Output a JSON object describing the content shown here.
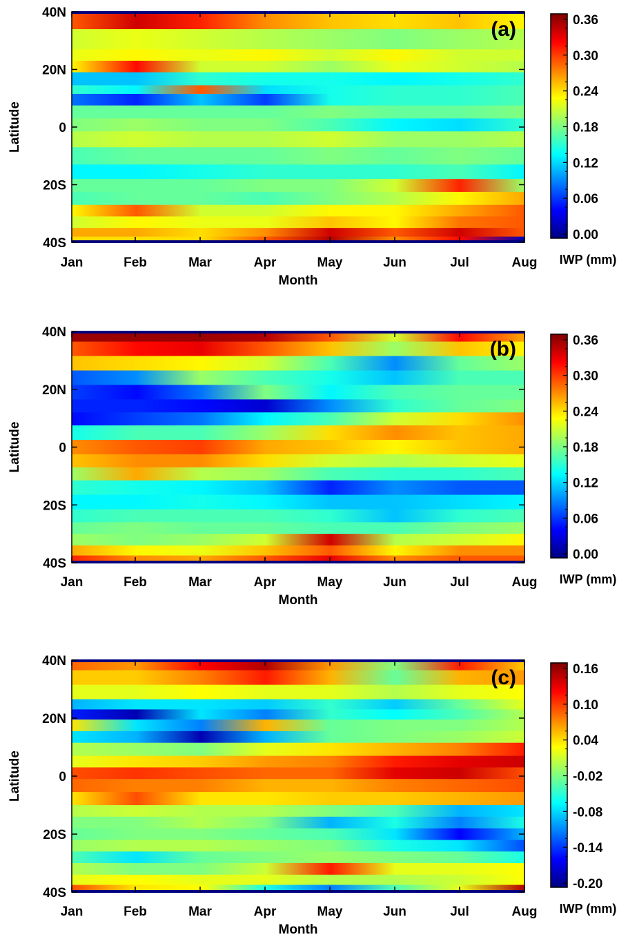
{
  "colors": {
    "colormap": [
      "#00007f",
      "#0000ff",
      "#0080ff",
      "#00ffff",
      "#80ff80",
      "#ffff00",
      "#ff8000",
      "#ff0000",
      "#7f0000"
    ]
  },
  "chart_data": [
    {
      "type": "heatmap",
      "panel_label": "(a)",
      "xlabel": "Month",
      "ylabel": "Latitude",
      "x_tick_labels": [
        "Jan",
        "Feb",
        "Mar",
        "Apr",
        "May",
        "Jun",
        "Jul",
        "Aug"
      ],
      "y_tick_labels": [
        "40N",
        "20N",
        "0",
        "20S",
        "40S"
      ],
      "y_tick_values": [
        40,
        20,
        0,
        -20,
        -40
      ],
      "ylim": [
        -40,
        40
      ],
      "colorbar": {
        "label": "IWP (mm)",
        "tick_labels": [
          "0.36",
          "0.30",
          "0.24",
          "0.18",
          "0.12",
          "0.06",
          "0.00"
        ],
        "range": [
          0.0,
          0.38
        ]
      },
      "bands": [
        {
          "lat": 38,
          "values": [
            0.3,
            0.35,
            0.32,
            0.28,
            0.26,
            0.25,
            0.26,
            0.24
          ]
        },
        {
          "lat": 30,
          "values": [
            0.22,
            0.23,
            0.22,
            0.21,
            0.2,
            0.19,
            0.2,
            0.21
          ]
        },
        {
          "lat": 24,
          "values": [
            0.23,
            0.24,
            0.23,
            0.24,
            0.22,
            0.24,
            0.22,
            0.22
          ]
        },
        {
          "lat": 22,
          "values": [
            0.24,
            0.33,
            0.22,
            0.22,
            0.2,
            0.23,
            0.22,
            0.21
          ]
        },
        {
          "lat": 16,
          "values": [
            0.12,
            0.12,
            0.16,
            0.15,
            0.15,
            0.14,
            0.15,
            0.16
          ]
        },
        {
          "lat": 13,
          "values": [
            0.16,
            0.14,
            0.3,
            0.13,
            0.15,
            0.16,
            0.16,
            0.17
          ]
        },
        {
          "lat": 10,
          "values": [
            0.09,
            0.06,
            0.12,
            0.07,
            0.15,
            0.16,
            0.16,
            0.17
          ]
        },
        {
          "lat": 5,
          "values": [
            0.18,
            0.18,
            0.18,
            0.18,
            0.19,
            0.18,
            0.18,
            0.19
          ]
        },
        {
          "lat": 1,
          "values": [
            0.19,
            0.2,
            0.19,
            0.19,
            0.17,
            0.14,
            0.13,
            0.16
          ]
        },
        {
          "lat": -4,
          "values": [
            0.21,
            0.22,
            0.21,
            0.21,
            0.22,
            0.2,
            0.2,
            0.21
          ]
        },
        {
          "lat": -10,
          "values": [
            0.17,
            0.18,
            0.18,
            0.18,
            0.19,
            0.18,
            0.19,
            0.18
          ]
        },
        {
          "lat": -16,
          "values": [
            0.14,
            0.14,
            0.15,
            0.16,
            0.16,
            0.16,
            0.17,
            0.14
          ]
        },
        {
          "lat": -20,
          "values": [
            0.18,
            0.18,
            0.18,
            0.19,
            0.19,
            0.22,
            0.32,
            0.2
          ]
        },
        {
          "lat": -25,
          "values": [
            0.17,
            0.18,
            0.18,
            0.17,
            0.19,
            0.21,
            0.24,
            0.27
          ]
        },
        {
          "lat": -29,
          "values": [
            0.24,
            0.3,
            0.22,
            0.22,
            0.24,
            0.24,
            0.27,
            0.3
          ]
        },
        {
          "lat": -33,
          "values": [
            0.22,
            0.24,
            0.23,
            0.23,
            0.26,
            0.24,
            0.29,
            0.3
          ]
        },
        {
          "lat": -37,
          "values": [
            0.27,
            0.27,
            0.25,
            0.28,
            0.35,
            0.3,
            0.35,
            0.3
          ]
        },
        {
          "lat": -39,
          "values": [
            0.25,
            0.25,
            0.25,
            0.3,
            0.36,
            0.28,
            0.33,
            0.02
          ]
        }
      ]
    },
    {
      "type": "heatmap",
      "panel_label": "(b)",
      "xlabel": "Month",
      "ylabel": "Latitude",
      "x_tick_labels": [
        "Jan",
        "Feb",
        "Mar",
        "Apr",
        "May",
        "Jun",
        "Jul",
        "Aug"
      ],
      "y_tick_labels": [
        "40N",
        "20N",
        "0",
        "20S",
        "40S"
      ],
      "y_tick_values": [
        40,
        20,
        0,
        -20,
        -40
      ],
      "ylim": [
        -40,
        40
      ],
      "colorbar": {
        "label": "IWP (mm)",
        "tick_labels": [
          "0.36",
          "0.30",
          "0.24",
          "0.18",
          "0.12",
          "0.06",
          "0.00"
        ],
        "range": [
          0.0,
          0.38
        ]
      },
      "bands": [
        {
          "lat": 39,
          "values": [
            0.37,
            0.37,
            0.37,
            0.36,
            0.3,
            0.22,
            0.33,
            0.27
          ]
        },
        {
          "lat": 34,
          "values": [
            0.3,
            0.33,
            0.34,
            0.3,
            0.26,
            0.2,
            0.26,
            0.24
          ]
        },
        {
          "lat": 29,
          "values": [
            0.26,
            0.25,
            0.24,
            0.22,
            0.17,
            0.1,
            0.18,
            0.2
          ]
        },
        {
          "lat": 24,
          "values": [
            0.08,
            0.1,
            0.2,
            0.17,
            0.15,
            0.12,
            0.17,
            0.17
          ]
        },
        {
          "lat": 19,
          "values": [
            0.07,
            0.05,
            0.09,
            0.19,
            0.14,
            0.17,
            0.18,
            0.18
          ]
        },
        {
          "lat": 14,
          "values": [
            0.06,
            0.06,
            0.05,
            0.03,
            0.1,
            0.16,
            0.18,
            0.19
          ]
        },
        {
          "lat": 10,
          "values": [
            0.05,
            0.07,
            0.09,
            0.14,
            0.17,
            0.22,
            0.25,
            0.28
          ]
        },
        {
          "lat": 5,
          "values": [
            0.15,
            0.17,
            0.17,
            0.2,
            0.25,
            0.28,
            0.26,
            0.27
          ]
        },
        {
          "lat": 0,
          "values": [
            0.28,
            0.3,
            0.31,
            0.27,
            0.26,
            0.24,
            0.26,
            0.27
          ]
        },
        {
          "lat": -5,
          "values": [
            0.26,
            0.28,
            0.28,
            0.25,
            0.22,
            0.21,
            0.22,
            0.23
          ]
        },
        {
          "lat": -9,
          "values": [
            0.2,
            0.27,
            0.21,
            0.2,
            0.17,
            0.16,
            0.16,
            0.17
          ]
        },
        {
          "lat": -14,
          "values": [
            0.16,
            0.15,
            0.14,
            0.12,
            0.06,
            0.1,
            0.08,
            0.08
          ]
        },
        {
          "lat": -19,
          "values": [
            0.14,
            0.14,
            0.15,
            0.14,
            0.12,
            0.12,
            0.13,
            0.14
          ]
        },
        {
          "lat": -24,
          "values": [
            0.16,
            0.17,
            0.17,
            0.17,
            0.16,
            0.12,
            0.16,
            0.17
          ]
        },
        {
          "lat": -28,
          "values": [
            0.18,
            0.19,
            0.18,
            0.18,
            0.17,
            0.17,
            0.19,
            0.2
          ]
        },
        {
          "lat": -32,
          "values": [
            0.2,
            0.19,
            0.2,
            0.22,
            0.35,
            0.21,
            0.22,
            0.24
          ]
        },
        {
          "lat": -36,
          "values": [
            0.27,
            0.24,
            0.23,
            0.26,
            0.3,
            0.24,
            0.28,
            0.28
          ]
        },
        {
          "lat": -39,
          "values": [
            0.32,
            0.28,
            0.27,
            0.3,
            0.34,
            0.28,
            0.3,
            0.3
          ]
        }
      ]
    },
    {
      "type": "heatmap",
      "panel_label": "(c)",
      "xlabel": "Month",
      "ylabel": "Latitude",
      "x_tick_labels": [
        "Jan",
        "Feb",
        "Mar",
        "Apr",
        "May",
        "Jun",
        "Jul",
        "Aug"
      ],
      "y_tick_labels": [
        "40N",
        "20N",
        "0",
        "20S",
        "40S"
      ],
      "y_tick_values": [
        40,
        20,
        0,
        -20,
        -40
      ],
      "ylim": [
        -40,
        40
      ],
      "colorbar": {
        "label": "IWP (mm)",
        "tick_labels": [
          "0.16",
          "0.10",
          "0.04",
          "-0.02",
          "-0.08",
          "-0.14",
          "-0.20"
        ],
        "range": [
          -0.22,
          0.18
        ]
      },
      "bands": [
        {
          "lat": 39,
          "values": [
            0.09,
            0.07,
            0.13,
            0.16,
            0.07,
            -0.02,
            0.12,
            0.05
          ]
        },
        {
          "lat": 34,
          "values": [
            0.05,
            0.05,
            0.08,
            0.12,
            0.06,
            -0.03,
            0.06,
            0.07
          ]
        },
        {
          "lat": 29,
          "values": [
            0.02,
            0.02,
            0.03,
            0.02,
            0.02,
            0.0,
            0.02,
            0.03
          ]
        },
        {
          "lat": 24,
          "values": [
            -0.1,
            -0.08,
            -0.08,
            -0.09,
            -0.05,
            -0.09,
            -0.03,
            0.02
          ]
        },
        {
          "lat": 22,
          "values": [
            -0.16,
            -0.2,
            -0.08,
            -0.12,
            -0.05,
            -0.07,
            -0.04,
            0.0
          ]
        },
        {
          "lat": 17,
          "values": [
            0.04,
            -0.08,
            -0.12,
            0.06,
            -0.03,
            -0.02,
            -0.02,
            0.0
          ]
        },
        {
          "lat": 14,
          "values": [
            -0.08,
            -0.1,
            -0.2,
            -0.1,
            -0.03,
            -0.02,
            -0.01,
            0.01
          ]
        },
        {
          "lat": 9,
          "values": [
            0.0,
            -0.01,
            -0.02,
            0.02,
            0.04,
            0.06,
            0.08,
            0.12
          ]
        },
        {
          "lat": 5,
          "values": [
            0.02,
            0.04,
            0.05,
            0.07,
            0.08,
            0.12,
            0.14,
            0.15
          ]
        },
        {
          "lat": 1,
          "values": [
            0.1,
            0.11,
            0.1,
            0.09,
            0.09,
            0.14,
            0.15,
            0.1
          ]
        },
        {
          "lat": -3,
          "values": [
            0.09,
            0.08,
            0.08,
            0.06,
            0.06,
            0.08,
            0.09,
            0.1
          ]
        },
        {
          "lat": -8,
          "values": [
            0.04,
            0.1,
            0.04,
            0.04,
            0.05,
            0.05,
            0.06,
            0.07
          ]
        },
        {
          "lat": -12,
          "values": [
            0.0,
            0.01,
            0.0,
            0.0,
            -0.02,
            -0.04,
            -0.1,
            -0.08
          ]
        },
        {
          "lat": -16,
          "values": [
            -0.02,
            -0.02,
            0.0,
            -0.02,
            -0.1,
            -0.06,
            -0.12,
            -0.06
          ]
        },
        {
          "lat": -20,
          "values": [
            -0.03,
            -0.02,
            -0.02,
            -0.03,
            -0.04,
            -0.08,
            -0.17,
            -0.1
          ]
        },
        {
          "lat": -24,
          "values": [
            -0.01,
            0.0,
            0.0,
            -0.01,
            -0.02,
            -0.06,
            -0.08,
            -0.14
          ]
        },
        {
          "lat": -28,
          "values": [
            -0.04,
            -0.08,
            -0.03,
            -0.02,
            -0.01,
            -0.02,
            -0.03,
            -0.06
          ]
        },
        {
          "lat": -32,
          "values": [
            0.0,
            -0.02,
            -0.02,
            0.01,
            0.12,
            0.02,
            0.02,
            0.03
          ]
        },
        {
          "lat": -36,
          "values": [
            0.02,
            0.03,
            0.02,
            0.02,
            0.0,
            0.0,
            0.01,
            0.03
          ]
        },
        {
          "lat": -39,
          "values": [
            0.1,
            0.04,
            0.03,
            -0.06,
            -0.12,
            -0.04,
            0.02,
            0.16
          ]
        }
      ]
    }
  ]
}
